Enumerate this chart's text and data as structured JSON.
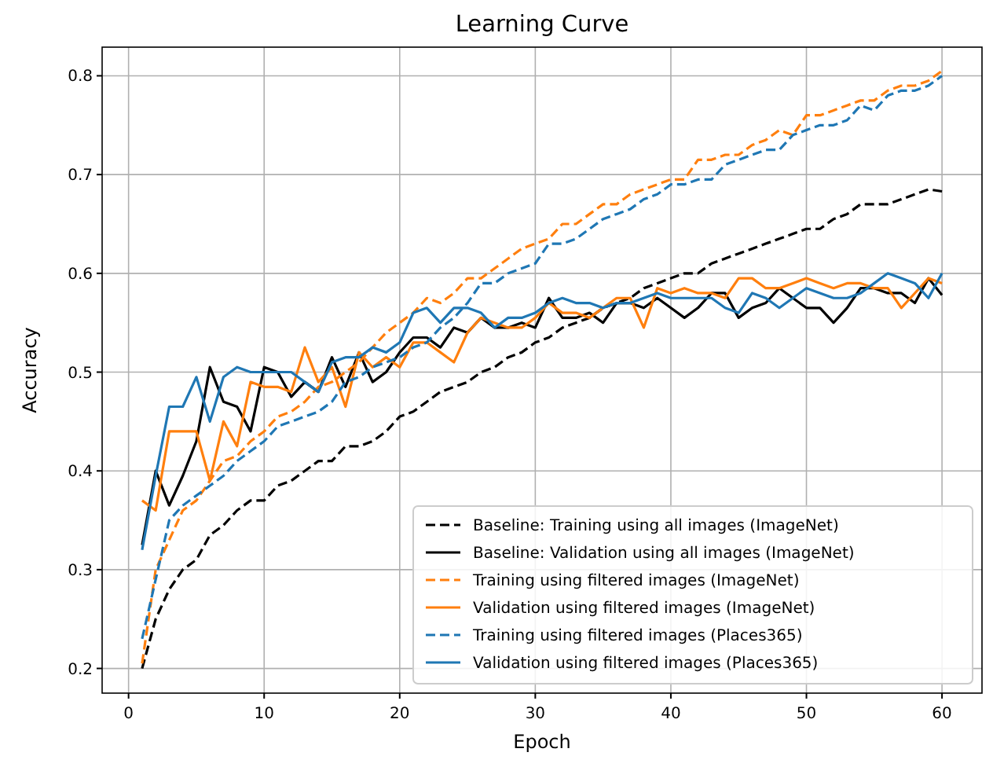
{
  "chart_data": {
    "type": "line",
    "title": "Learning Curve",
    "xlabel": "Epoch",
    "ylabel": "Accuracy",
    "x": [
      1,
      2,
      3,
      4,
      5,
      6,
      7,
      8,
      9,
      10,
      11,
      12,
      13,
      14,
      15,
      16,
      17,
      18,
      19,
      20,
      21,
      22,
      23,
      24,
      25,
      26,
      27,
      28,
      29,
      30,
      31,
      32,
      33,
      34,
      35,
      36,
      37,
      38,
      39,
      40,
      41,
      42,
      43,
      44,
      45,
      46,
      47,
      48,
      49,
      50,
      51,
      52,
      53,
      54,
      55,
      56,
      57,
      58,
      59,
      60
    ],
    "xlim": [
      -1.95,
      62.95
    ],
    "xticks": [
      0,
      10,
      20,
      30,
      40,
      50,
      60
    ],
    "ylim": [
      0.175,
      0.829
    ],
    "yticks": [
      0.2,
      0.3,
      0.4,
      0.5,
      0.6,
      0.7,
      0.8
    ],
    "grid": true,
    "legend": "bottom right",
    "series": [
      {
        "name": "Baseline: Training using all images (ImageNet)",
        "color": "#000000",
        "line_style": "dashed",
        "values": [
          0.2,
          0.25,
          0.28,
          0.3,
          0.31,
          0.335,
          0.345,
          0.36,
          0.37,
          0.37,
          0.385,
          0.39,
          0.4,
          0.41,
          0.41,
          0.425,
          0.425,
          0.43,
          0.44,
          0.455,
          0.46,
          0.47,
          0.48,
          0.485,
          0.49,
          0.5,
          0.505,
          0.515,
          0.52,
          0.53,
          0.535,
          0.545,
          0.55,
          0.555,
          0.565,
          0.57,
          0.575,
          0.585,
          0.59,
          0.595,
          0.6,
          0.6,
          0.61,
          0.615,
          0.62,
          0.625,
          0.63,
          0.635,
          0.64,
          0.645,
          0.645,
          0.655,
          0.66,
          0.67,
          0.67,
          0.67,
          0.675,
          0.68,
          0.685,
          0.683
        ]
      },
      {
        "name": "Baseline: Validation using all images (ImageNet)",
        "color": "#000000",
        "line_style": "solid",
        "values": [
          0.325,
          0.4,
          0.365,
          0.395,
          0.43,
          0.505,
          0.47,
          0.465,
          0.44,
          0.505,
          0.5,
          0.475,
          0.49,
          0.48,
          0.515,
          0.485,
          0.52,
          0.49,
          0.5,
          0.52,
          0.535,
          0.535,
          0.525,
          0.545,
          0.54,
          0.555,
          0.545,
          0.545,
          0.55,
          0.545,
          0.575,
          0.555,
          0.555,
          0.56,
          0.55,
          0.57,
          0.57,
          0.565,
          0.575,
          0.565,
          0.555,
          0.565,
          0.58,
          0.58,
          0.555,
          0.565,
          0.57,
          0.585,
          0.575,
          0.565,
          0.565,
          0.55,
          0.565,
          0.585,
          0.585,
          0.58,
          0.58,
          0.57,
          0.595,
          0.578
        ]
      },
      {
        "name": "Training using filtered images (ImageNet)",
        "color": "#ff7f0e",
        "line_style": "dashed",
        "values": [
          0.205,
          0.3,
          0.33,
          0.36,
          0.37,
          0.39,
          0.41,
          0.415,
          0.43,
          0.44,
          0.455,
          0.46,
          0.47,
          0.485,
          0.49,
          0.5,
          0.51,
          0.525,
          0.54,
          0.55,
          0.56,
          0.575,
          0.57,
          0.58,
          0.595,
          0.595,
          0.605,
          0.615,
          0.625,
          0.63,
          0.635,
          0.65,
          0.65,
          0.66,
          0.67,
          0.67,
          0.68,
          0.685,
          0.69,
          0.695,
          0.695,
          0.715,
          0.715,
          0.72,
          0.72,
          0.73,
          0.735,
          0.745,
          0.74,
          0.76,
          0.76,
          0.765,
          0.77,
          0.775,
          0.775,
          0.785,
          0.79,
          0.79,
          0.795,
          0.805
        ]
      },
      {
        "name": "Validation using filtered images (ImageNet)",
        "color": "#ff7f0e",
        "line_style": "solid",
        "values": [
          0.37,
          0.36,
          0.44,
          0.44,
          0.44,
          0.39,
          0.45,
          0.425,
          0.49,
          0.485,
          0.485,
          0.48,
          0.525,
          0.49,
          0.505,
          0.465,
          0.52,
          0.505,
          0.515,
          0.505,
          0.53,
          0.53,
          0.52,
          0.51,
          0.54,
          0.555,
          0.55,
          0.545,
          0.545,
          0.555,
          0.57,
          0.56,
          0.56,
          0.555,
          0.565,
          0.575,
          0.575,
          0.545,
          0.585,
          0.58,
          0.585,
          0.58,
          0.58,
          0.575,
          0.595,
          0.595,
          0.585,
          0.585,
          0.59,
          0.595,
          0.59,
          0.585,
          0.59,
          0.59,
          0.585,
          0.585,
          0.565,
          0.58,
          0.595,
          0.59
        ]
      },
      {
        "name": "Training using filtered images (Places365)",
        "color": "#1f77b4",
        "line_style": "dashed",
        "values": [
          0.23,
          0.29,
          0.35,
          0.365,
          0.375,
          0.385,
          0.395,
          0.41,
          0.42,
          0.43,
          0.445,
          0.45,
          0.455,
          0.46,
          0.47,
          0.49,
          0.495,
          0.505,
          0.51,
          0.515,
          0.525,
          0.53,
          0.545,
          0.555,
          0.57,
          0.59,
          0.59,
          0.6,
          0.605,
          0.61,
          0.63,
          0.63,
          0.635,
          0.645,
          0.655,
          0.66,
          0.665,
          0.675,
          0.68,
          0.69,
          0.69,
          0.695,
          0.695,
          0.71,
          0.715,
          0.72,
          0.725,
          0.725,
          0.74,
          0.745,
          0.75,
          0.75,
          0.755,
          0.77,
          0.765,
          0.78,
          0.785,
          0.785,
          0.79,
          0.8
        ]
      },
      {
        "name": "Validation using filtered images (Places365)",
        "color": "#1f77b4",
        "line_style": "solid",
        "values": [
          0.32,
          0.395,
          0.465,
          0.465,
          0.495,
          0.45,
          0.495,
          0.505,
          0.5,
          0.5,
          0.5,
          0.5,
          0.49,
          0.48,
          0.51,
          0.515,
          0.515,
          0.525,
          0.52,
          0.53,
          0.56,
          0.565,
          0.55,
          0.565,
          0.565,
          0.56,
          0.545,
          0.555,
          0.555,
          0.56,
          0.57,
          0.575,
          0.57,
          0.57,
          0.565,
          0.57,
          0.57,
          0.575,
          0.58,
          0.575,
          0.575,
          0.575,
          0.575,
          0.565,
          0.56,
          0.58,
          0.575,
          0.565,
          0.575,
          0.585,
          0.58,
          0.575,
          0.575,
          0.58,
          0.59,
          0.6,
          0.595,
          0.59,
          0.575,
          0.6
        ]
      }
    ]
  }
}
